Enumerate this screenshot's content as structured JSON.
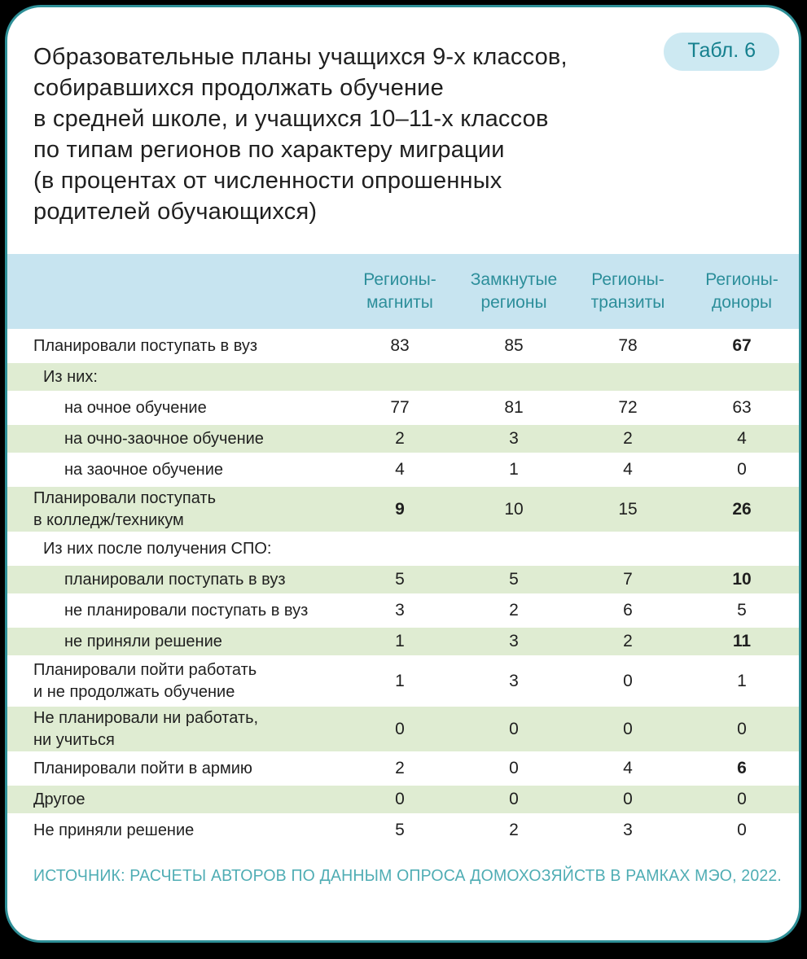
{
  "page": {
    "badge_label": "Табл. 6",
    "title_lines": [
      "Образовательные планы учащихся 9-х классов,",
      "собиравшихся продолжать обучение",
      "в средней школе, и учащихся 10–11-х классов",
      "по типам регионов по характеру миграции",
      "(в процентах от численности опрошенных",
      "родителей обучающихся)"
    ],
    "source_note": "ИСТОЧНИК: РАСЧЕТЫ АВТОРОВ ПО ДАННЫМ ОПРОСА ДОМОХОЗЯЙСТВ В РАМКАХ МЭО, 2022."
  },
  "colors": {
    "accent_teal": "#2e8f97",
    "header_band_bg": "#c7e4f0",
    "header_text": "#2c8e9a",
    "badge_bg": "#cde9f2",
    "green_row_bg": "#dfecd2",
    "source_text": "#4fadb4"
  },
  "chart_data": {
    "type": "table",
    "title": "Образовательные планы учащихся 9-х классов, собиравшихся продолжать обучение в средней школе, и учащихся 10–11-х классов по типам регионов по характеру миграции (в процентах от численности опрошенных родителей обучающихся)",
    "columns": [
      "Регионы-магниты",
      "Замкнутые регионы",
      "Регионы-транзиты",
      "Регионы-доноры"
    ],
    "rows": [
      {
        "label": "Планировали поступать в вуз",
        "values": [
          "83",
          "85",
          "78",
          "67"
        ]
      },
      {
        "label": "Из них:",
        "values": [
          "",
          "",
          "",
          ""
        ]
      },
      {
        "label": "на очное обучение",
        "values": [
          "77",
          "81",
          "72",
          "63"
        ]
      },
      {
        "label": "на очно-заочное обучение",
        "values": [
          "2",
          "3",
          "2",
          "4"
        ]
      },
      {
        "label": "на заочное обучение",
        "values": [
          "4",
          "1",
          "4",
          "0"
        ]
      },
      {
        "label": "Планировали поступать\nв колледж/техникум",
        "values": [
          "9",
          "10",
          "15",
          "26"
        ]
      },
      {
        "label": "Из них после получения СПО:",
        "values": [
          "",
          "",
          "",
          ""
        ]
      },
      {
        "label": "планировали поступать в вуз",
        "values": [
          "5",
          "5",
          "7",
          "10"
        ]
      },
      {
        "label": "не планировали поступать в вуз",
        "values": [
          "3",
          "2",
          "6",
          "5"
        ]
      },
      {
        "label": "не приняли решение",
        "values": [
          "1",
          "3",
          "2",
          "11"
        ]
      },
      {
        "label": "Планировали пойти работать\nи не продолжать обучение",
        "values": [
          "1",
          "3",
          "0",
          "1"
        ]
      },
      {
        "label": "Не планировали ни работать,\nни учиться",
        "values": [
          "0",
          "0",
          "0",
          "0"
        ]
      },
      {
        "label": "Планировали пойти в армию",
        "values": [
          "2",
          "0",
          "4",
          "6"
        ]
      },
      {
        "label": "Другое",
        "values": [
          "0",
          "0",
          "0",
          "0"
        ]
      },
      {
        "label": "Не приняли решение",
        "values": [
          "5",
          "2",
          "3",
          "0"
        ]
      }
    ],
    "bold_cells": [
      [
        0,
        3
      ],
      [
        5,
        0
      ],
      [
        5,
        3
      ],
      [
        7,
        3
      ],
      [
        9,
        3
      ],
      [
        12,
        3
      ]
    ],
    "legend_position": "none",
    "grid": "off"
  }
}
